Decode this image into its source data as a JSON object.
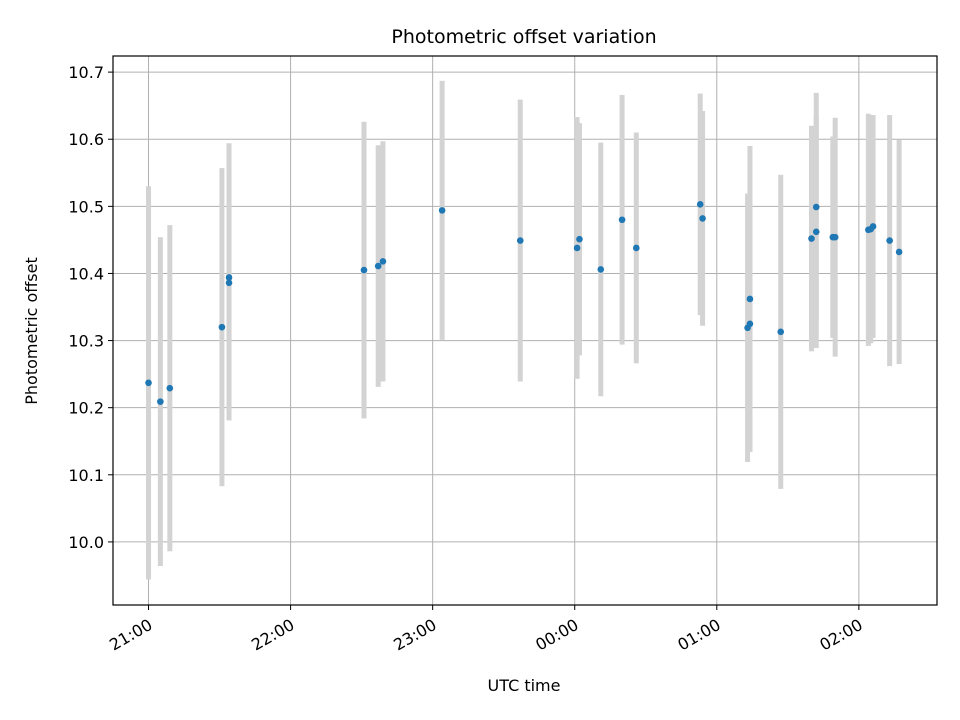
{
  "chart_data": {
    "type": "scatter",
    "title": "Photometric offset variation",
    "xlabel": "UTC time",
    "ylabel": "Photometric offset",
    "x_unit": "UTC time (HH:MM)",
    "x_range": [
      "20:45",
      "02:33"
    ],
    "ylim": [
      9.906,
      10.724
    ],
    "x_ticks": [
      "21:00",
      "22:00",
      "23:00",
      "00:00",
      "01:00",
      "02:00"
    ],
    "y_ticks": [
      10.0,
      10.1,
      10.2,
      10.3,
      10.4,
      10.5,
      10.6,
      10.7
    ],
    "y_tick_labels": [
      "10.0",
      "10.1",
      "10.2",
      "10.3",
      "10.4",
      "10.5",
      "10.6",
      "10.7"
    ],
    "grid": true,
    "point_color": "#1f77b4",
    "errorbar_color": "#d3d3d3",
    "points": [
      {
        "x": "21:00",
        "y": 10.237,
        "yerr": 0.293
      },
      {
        "x": "21:05",
        "y": 10.209,
        "yerr": 0.245
      },
      {
        "x": "21:09",
        "y": 10.229,
        "yerr": 0.243
      },
      {
        "x": "21:31",
        "y": 10.32,
        "yerr": 0.237
      },
      {
        "x": "21:34",
        "y": 10.394,
        "yerr": 0.2
      },
      {
        "x": "21:34",
        "y": 10.386,
        "yerr": 0.205
      },
      {
        "x": "22:31",
        "y": 10.405,
        "yerr": 0.221
      },
      {
        "x": "22:37",
        "y": 10.411,
        "yerr": 0.18
      },
      {
        "x": "22:39",
        "y": 10.418,
        "yerr": 0.179
      },
      {
        "x": "23:04",
        "y": 10.494,
        "yerr": 0.193
      },
      {
        "x": "23:37",
        "y": 10.449,
        "yerr": 0.21
      },
      {
        "x": "00:01",
        "y": 10.438,
        "yerr": 0.195
      },
      {
        "x": "00:02",
        "y": 10.451,
        "yerr": 0.173
      },
      {
        "x": "00:11",
        "y": 10.406,
        "yerr": 0.189
      },
      {
        "x": "00:20",
        "y": 10.48,
        "yerr": 0.186
      },
      {
        "x": "00:26",
        "y": 10.438,
        "yerr": 0.172
      },
      {
        "x": "00:53",
        "y": 10.503,
        "yerr": 0.165
      },
      {
        "x": "00:54",
        "y": 10.482,
        "yerr": 0.16
      },
      {
        "x": "01:13",
        "y": 10.319,
        "yerr": 0.2
      },
      {
        "x": "01:14",
        "y": 10.325,
        "yerr": 0.19
      },
      {
        "x": "01:14",
        "y": 10.362,
        "yerr": 0.228
      },
      {
        "x": "01:27",
        "y": 10.313,
        "yerr": 0.234
      },
      {
        "x": "01:40",
        "y": 10.452,
        "yerr": 0.168
      },
      {
        "x": "01:42",
        "y": 10.499,
        "yerr": 0.17
      },
      {
        "x": "01:42",
        "y": 10.462,
        "yerr": 0.173
      },
      {
        "x": "01:49",
        "y": 10.454,
        "yerr": 0.15
      },
      {
        "x": "01:50",
        "y": 10.454,
        "yerr": 0.178
      },
      {
        "x": "02:04",
        "y": 10.465,
        "yerr": 0.173
      },
      {
        "x": "02:05",
        "y": 10.466,
        "yerr": 0.17
      },
      {
        "x": "02:06",
        "y": 10.47,
        "yerr": 0.166
      },
      {
        "x": "02:13",
        "y": 10.449,
        "yerr": 0.187
      },
      {
        "x": "02:17",
        "y": 10.432,
        "yerr": 0.167
      }
    ]
  }
}
